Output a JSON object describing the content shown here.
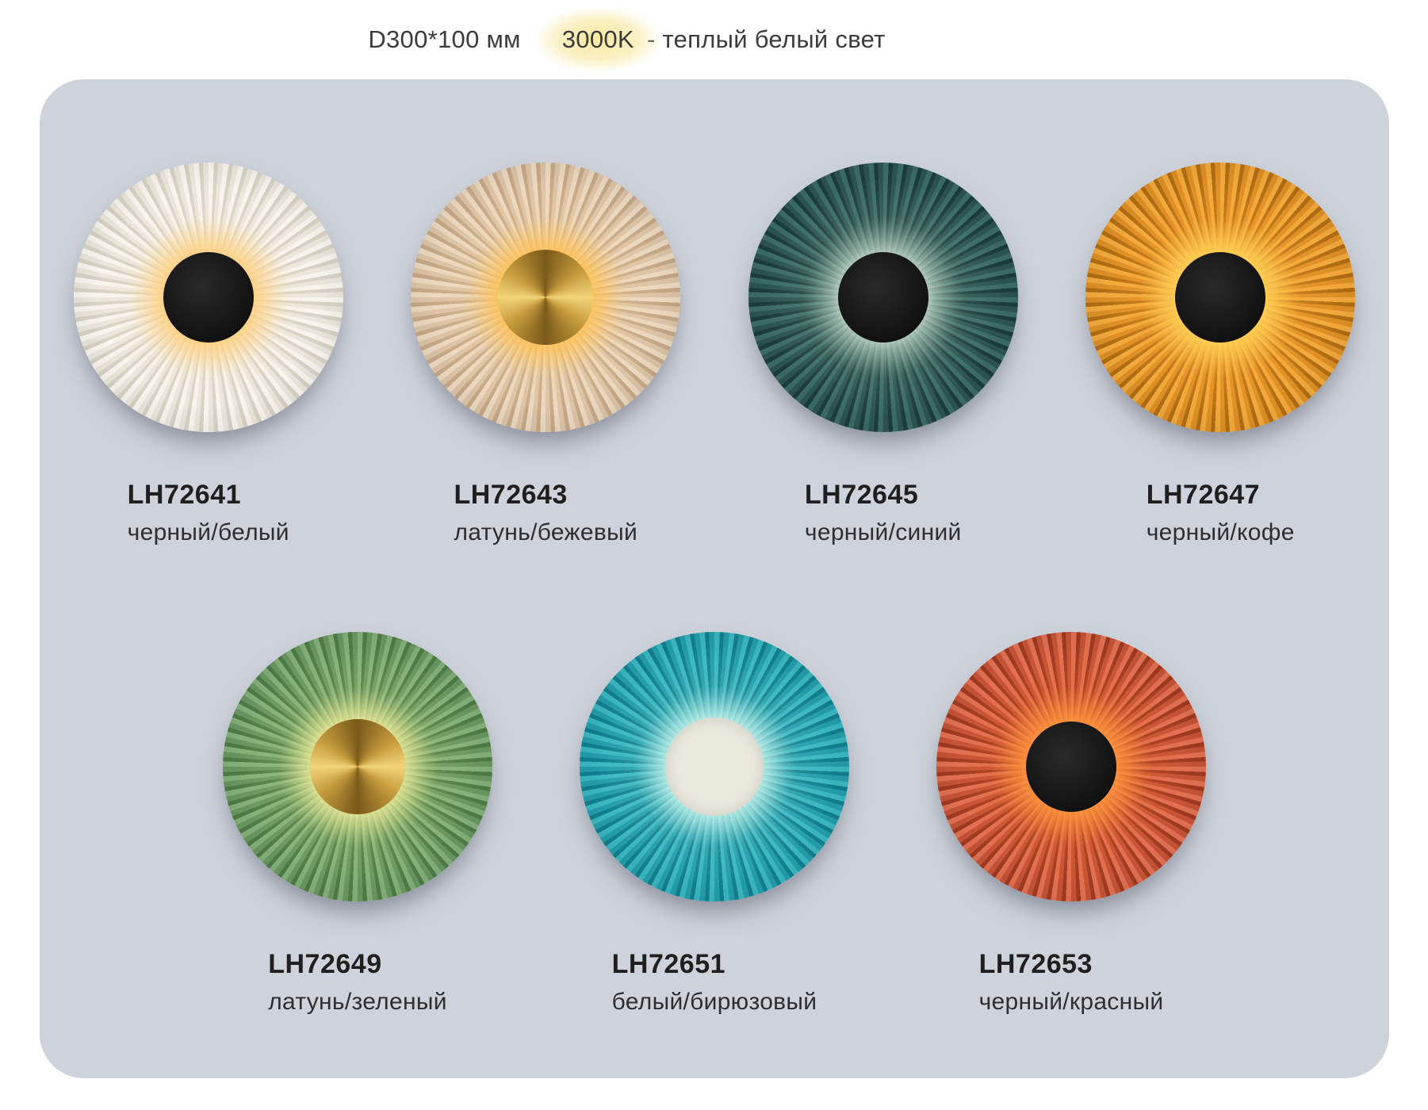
{
  "header": {
    "dimensions": "D300*100 мм",
    "kelvin": "3000K",
    "kelvin_suffix": "- теплый белый свет",
    "highlight_color": "#f8e79e",
    "text_color": "#3b3b3b"
  },
  "panel": {
    "background": "#ced2da"
  },
  "products": [
    {
      "model": "LH72641",
      "color": "черный/белый",
      "cap": "black",
      "palette": {
        "light": "#f8f5ef",
        "mid": "#ebe6dc",
        "dark": "#d8d2c5",
        "g1": "rgba(255,214,140,0.95)",
        "g2": "rgba(255,222,165,0.55)",
        "g3": "rgba(252,238,215,0.15)",
        "halo": "rgba(255,205,120,0.9)"
      }
    },
    {
      "model": "LH72643",
      "color": "латунь/бежевый",
      "cap": "brass",
      "palette": {
        "light": "#ecd8bf",
        "mid": "#dcc3a6",
        "dark": "#c5a887",
        "g1": "rgba(255,200,95,0.95)",
        "g2": "rgba(255,208,120,0.6)",
        "g3": "rgba(244,216,170,0.2)",
        "halo": "rgba(255,190,80,0.85)"
      }
    },
    {
      "model": "LH72645",
      "color": "черный/синий",
      "cap": "black",
      "palette": {
        "light": "#3c6b66",
        "mid": "#2c544f",
        "dark": "#1c3d3a",
        "g1": "rgba(225,245,225,0.8)",
        "g2": "rgba(200,228,205,0.38)",
        "g3": "rgba(170,205,185,0.12)",
        "halo": "rgba(235,250,235,0.55)"
      }
    },
    {
      "model": "LH72647",
      "color": "черный/кофе",
      "cap": "black",
      "palette": {
        "light": "#f2a93c",
        "mid": "#dd8f24",
        "dark": "#b26d12",
        "g1": "rgba(255,212,80,0.98)",
        "g2": "rgba(255,190,70,0.7)",
        "g3": "rgba(255,170,60,0.25)",
        "halo": "rgba(255,210,90,0.95)"
      }
    },
    {
      "model": "LH72649",
      "color": "латунь/зеленый",
      "cap": "brass",
      "palette": {
        "light": "#84b079",
        "mid": "#699760",
        "dark": "#4e7c46",
        "g1": "rgba(240,238,150,0.9)",
        "g2": "rgba(222,228,142,0.5)",
        "g3": "rgba(192,212,132,0.15)",
        "halo": "rgba(245,240,160,0.8)"
      }
    },
    {
      "model": "LH72651",
      "color": "белый/бирюзовый",
      "cap": "cream",
      "palette": {
        "light": "#3bb7c0",
        "mid": "#249dab",
        "dark": "#11808f",
        "g1": "rgba(222,255,246,0.9)",
        "g2": "rgba(182,240,230,0.5)",
        "g3": "rgba(142,220,214,0.15)",
        "halo": "rgba(225,255,248,0.7)"
      }
    },
    {
      "model": "LH72653",
      "color": "черный/красный",
      "cap": "black",
      "palette": {
        "light": "#e27052",
        "mid": "#c65336",
        "dark": "#a03a20",
        "g1": "rgba(255,160,70,0.95)",
        "g2": "rgba(255,140,60,0.55)",
        "g3": "rgba(232,112,52,0.2)",
        "halo": "rgba(255,150,60,0.85)"
      }
    }
  ]
}
